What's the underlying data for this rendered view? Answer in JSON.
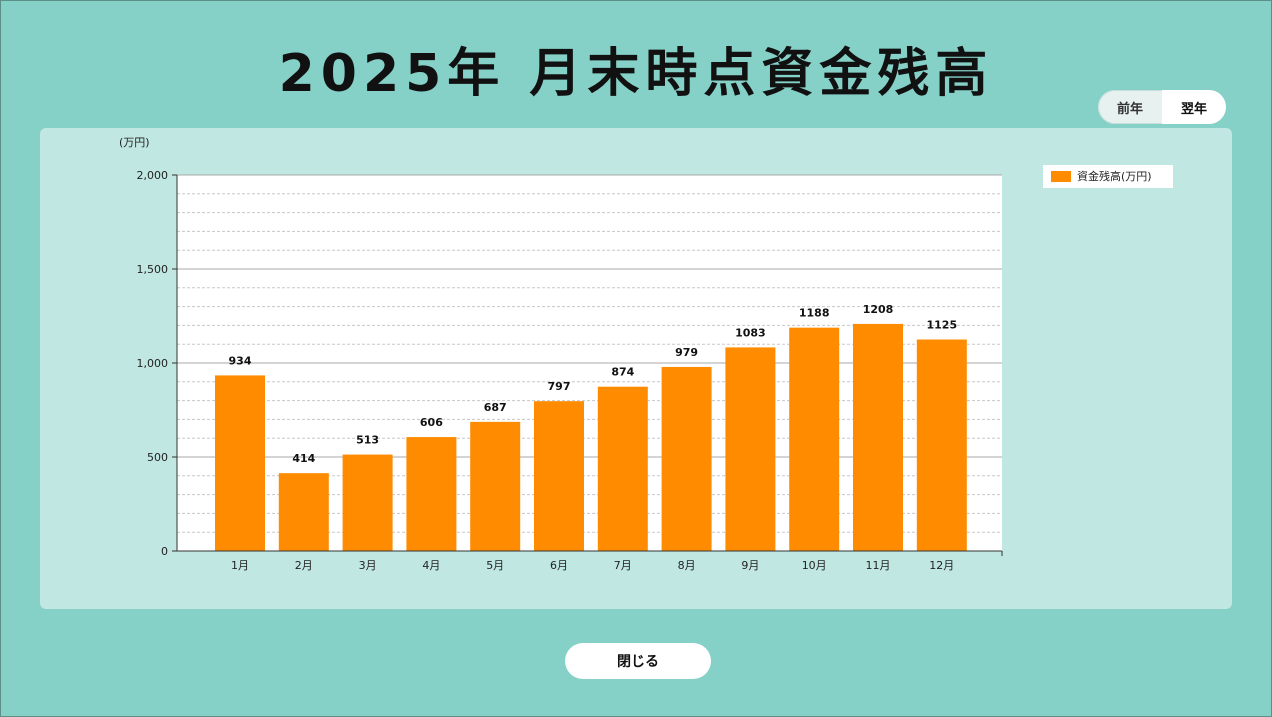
{
  "title": "2025年 月末時点資金残高",
  "toggle": {
    "prev_label": "前年",
    "next_label": "翌年"
  },
  "close_label": "閉じる",
  "colors": {
    "background": "#85d1c8",
    "panel": "#c0e7e2",
    "bar": "#ff8c00"
  },
  "chart_data": {
    "type": "bar",
    "categories": [
      "1月",
      "2月",
      "3月",
      "4月",
      "5月",
      "6月",
      "7月",
      "8月",
      "9月",
      "10月",
      "11月",
      "12月"
    ],
    "series": [
      {
        "name": "資金残高(万円)",
        "values": [
          934,
          414,
          513,
          606,
          687,
          797,
          874,
          979,
          1083,
          1188,
          1208,
          1125
        ]
      }
    ],
    "ylabel": "(万円)",
    "ylim": [
      0,
      2000
    ],
    "yticks": [
      0,
      500,
      1000,
      1500,
      2000
    ],
    "ytick_labels": [
      "0",
      "500",
      "1,000",
      "1,500",
      "2,000"
    ],
    "grid": true,
    "legend": "top-right",
    "data_labels": true
  }
}
